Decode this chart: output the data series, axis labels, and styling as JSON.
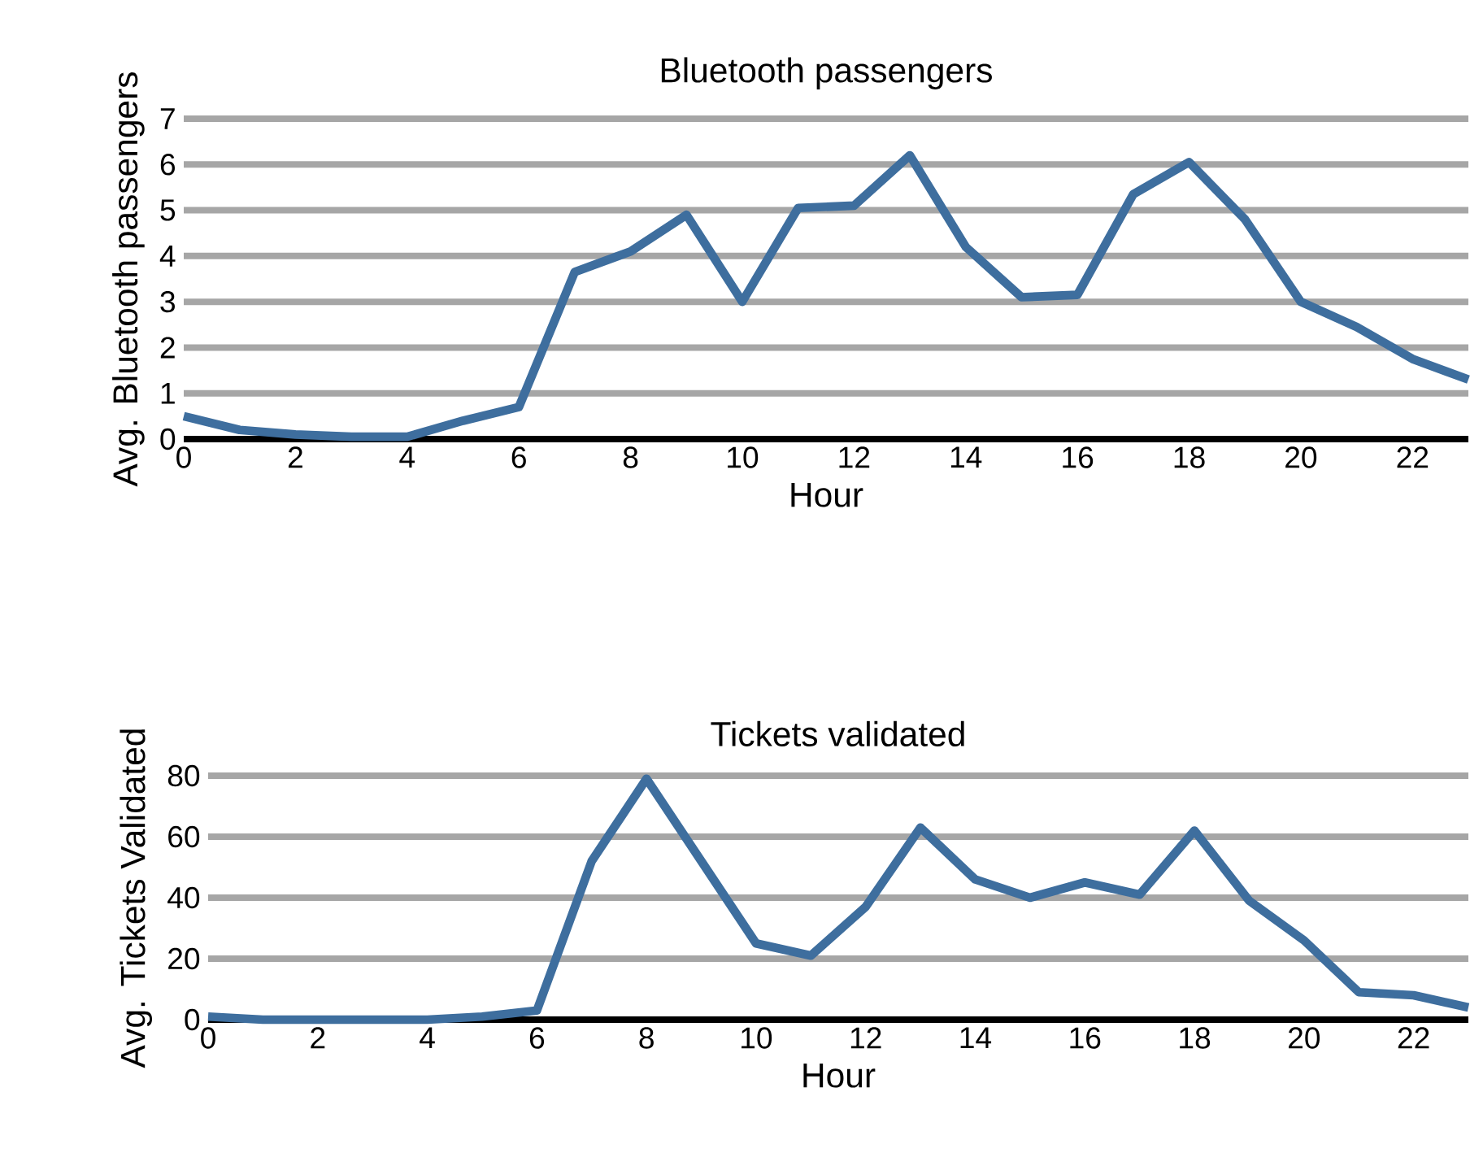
{
  "chart_data": [
    {
      "type": "line",
      "title": "Bluetooth passengers",
      "xlabel": "Hour",
      "ylabel": "Avg. Bluetooth passengers",
      "x": [
        0,
        1,
        2,
        3,
        4,
        5,
        6,
        7,
        8,
        9,
        10,
        11,
        12,
        13,
        14,
        15,
        16,
        17,
        18,
        19,
        20,
        21,
        22,
        23
      ],
      "series": [
        {
          "color": "#3e6e9e",
          "values": [
            0.5,
            0.2,
            0.1,
            0.05,
            0.05,
            0.4,
            0.7,
            3.65,
            4.1,
            4.9,
            3.0,
            5.05,
            5.1,
            6.2,
            4.2,
            3.1,
            3.15,
            5.35,
            6.05,
            4.8,
            3.0,
            2.45,
            1.75,
            1.3
          ]
        }
      ],
      "xlim": [
        0,
        23
      ],
      "xticks": [
        0,
        2,
        4,
        6,
        8,
        10,
        12,
        14,
        16,
        18,
        20,
        22
      ],
      "ylim": [
        0,
        7
      ],
      "yticks": [
        0,
        1,
        2,
        3,
        4,
        5,
        6,
        7
      ],
      "grid": "y",
      "marker": "none",
      "line_style": "solid"
    },
    {
      "type": "line",
      "title": "Tickets validated",
      "xlabel": "Hour",
      "ylabel": "Avg. Tickets Validated",
      "x": [
        0,
        1,
        2,
        3,
        4,
        5,
        6,
        7,
        8,
        9,
        10,
        11,
        12,
        13,
        14,
        15,
        16,
        17,
        18,
        19,
        20,
        21,
        22,
        23
      ],
      "series": [
        {
          "color": "#3e6e9e",
          "values": [
            1,
            0,
            0,
            0,
            0,
            1,
            3,
            52,
            79,
            52,
            25,
            21,
            37,
            63,
            46,
            40,
            45,
            41,
            62,
            39,
            26,
            9,
            8,
            4
          ]
        }
      ],
      "xlim": [
        0,
        23
      ],
      "xticks": [
        0,
        2,
        4,
        6,
        8,
        10,
        12,
        14,
        16,
        18,
        20,
        22
      ],
      "ylim": [
        0,
        80
      ],
      "yticks": [
        0,
        20,
        40,
        60,
        80
      ],
      "grid": "y",
      "marker": "none",
      "line_style": "solid"
    }
  ]
}
